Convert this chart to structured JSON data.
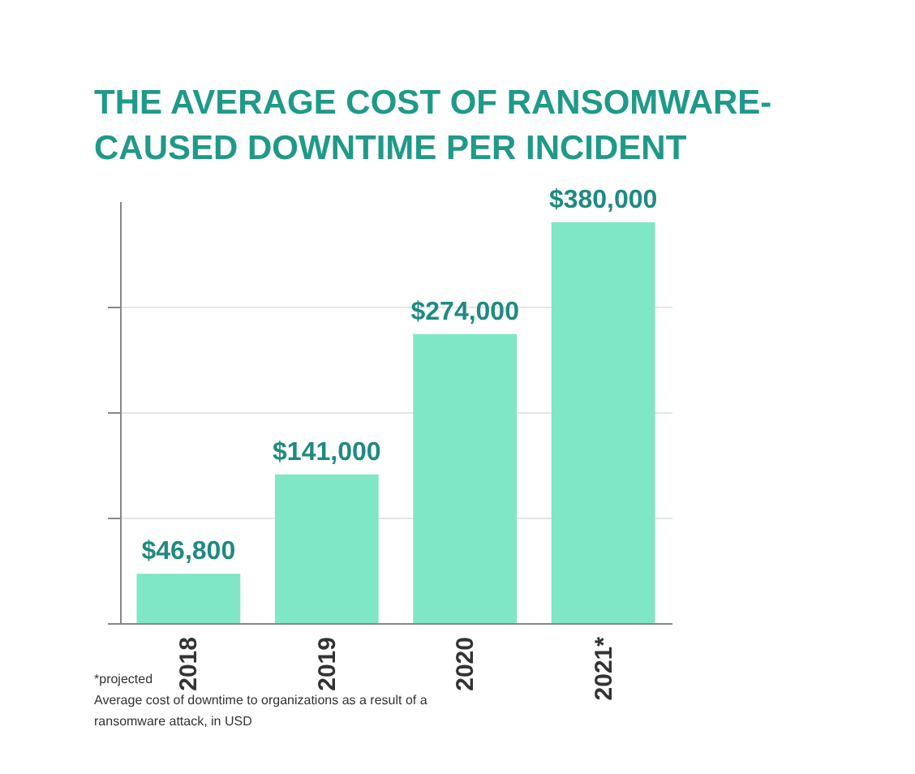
{
  "chart_data": {
    "type": "bar",
    "title": "THE AVERAGE COST OF RANSOMWARE-CAUSED DOWNTIME PER INCIDENT",
    "categories": [
      "2018",
      "2019",
      "2020",
      "2021*"
    ],
    "values": [
      46800,
      141000,
      274000,
      380000
    ],
    "value_labels": [
      "$46,800",
      "$141,000",
      "$274,000",
      "$380,000"
    ],
    "color": "#7fe6c6",
    "ylim": [
      0,
      400000
    ],
    "yticks": [
      {
        "value": 0,
        "label": null
      },
      {
        "value": 100000,
        "label": null
      },
      {
        "value": 200000,
        "label": null
      },
      {
        "value": 300000,
        "label": null
      }
    ],
    "grid": "y",
    "tick_labels": "x",
    "annotations": [
      "*projected",
      "Average cost of downtime to organizations as a result of a ransomware attack, in USD"
    ]
  }
}
